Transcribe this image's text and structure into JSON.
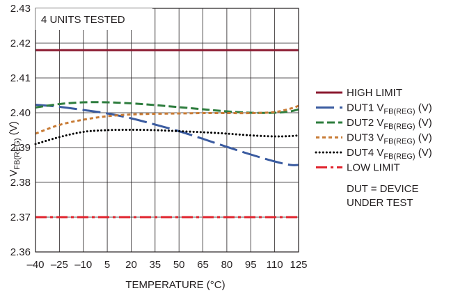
{
  "chart_data": {
    "type": "line",
    "annotation": "4 UNITS TESTED",
    "xlabel": "TEMPERATURE (°C)",
    "ylabel": {
      "main": "V",
      "sub": "FB(REG)",
      "unit": " (V)"
    },
    "xlim": [
      -40,
      125
    ],
    "ylim": [
      2.36,
      2.43
    ],
    "x_ticks": [
      -40,
      -25,
      -10,
      5,
      20,
      35,
      50,
      65,
      80,
      95,
      110,
      125
    ],
    "x_tick_labels": [
      "–40",
      "–25",
      "–10",
      "5",
      "20",
      "35",
      "50",
      "65",
      "80",
      "95",
      "110",
      "125"
    ],
    "y_ticks": [
      2.36,
      2.37,
      2.38,
      2.39,
      2.4,
      2.41,
      2.42,
      2.43
    ],
    "y_tick_labels": [
      "2.36",
      "2.37",
      "2.38",
      "2.39",
      "2.40",
      "2.41",
      "2.42",
      "2.43"
    ],
    "grid": true,
    "legend_position": "right",
    "legend_note": [
      "DUT = DEVICE",
      "UNDER TEST"
    ],
    "series": [
      {
        "name": "HIGH LIMIT",
        "label_main": "HIGH LIMIT",
        "label_sub": "",
        "label_unit": "",
        "color": "#8b1a30",
        "style": "solid",
        "x": [
          -40,
          125
        ],
        "y": [
          2.418,
          2.418
        ]
      },
      {
        "name": "DUT1 VFB(REG) (V)",
        "label_main": "DUT1 V",
        "label_sub": "FB(REG)",
        "label_unit": " (V)",
        "color": "#3a5ba0",
        "style": "longdash",
        "x": [
          -40,
          -25,
          -10,
          5,
          20,
          35,
          50,
          65,
          80,
          95,
          110,
          120,
          125
        ],
        "y": [
          2.4023,
          2.4017,
          2.4008,
          2.3998,
          2.3984,
          2.3966,
          2.3947,
          2.3925,
          2.3902,
          2.388,
          2.386,
          2.385,
          2.385
        ]
      },
      {
        "name": "DUT2 VFB(REG) (V)",
        "label_main": "DUT2 V",
        "label_sub": "FB(REG)",
        "label_unit": " (V)",
        "color": "#2e7d3e",
        "style": "dash",
        "x": [
          -40,
          -25,
          -10,
          5,
          20,
          35,
          50,
          65,
          80,
          95,
          110,
          120,
          125
        ],
        "y": [
          2.4015,
          2.4025,
          2.403,
          2.403,
          2.4027,
          2.4022,
          2.4016,
          2.401,
          2.4004,
          2.4,
          2.4,
          2.4004,
          2.401
        ]
      },
      {
        "name": "DUT3 VFB(REG) (V)",
        "label_main": "DUT3 V",
        "label_sub": "FB(REG)",
        "label_unit": " (V)",
        "color": "#c87b35",
        "style": "shortdash",
        "x": [
          -40,
          -25,
          -10,
          5,
          20,
          35,
          50,
          65,
          80,
          95,
          110,
          120,
          125
        ],
        "y": [
          2.394,
          2.3965,
          2.398,
          2.399,
          2.3995,
          2.3997,
          2.3998,
          2.3999,
          2.3999,
          2.3999,
          2.4002,
          2.4012,
          2.402
        ]
      },
      {
        "name": "DUT4 VFB(REG) (V)",
        "label_main": "DUT4 V",
        "label_sub": "FB(REG)",
        "label_unit": " (V)",
        "color": "#000000",
        "style": "dotted",
        "x": [
          -40,
          -25,
          -10,
          5,
          20,
          35,
          50,
          65,
          80,
          95,
          110,
          120,
          125
        ],
        "y": [
          2.391,
          2.393,
          2.3945,
          2.395,
          2.3951,
          2.395,
          2.3947,
          2.3944,
          2.394,
          2.3935,
          2.3932,
          2.3933,
          2.3935
        ]
      },
      {
        "name": "LOW LIMIT",
        "label_main": "LOW LIMIT",
        "label_sub": "",
        "label_unit": "",
        "color": "#e0242e",
        "style": "dashdot",
        "x": [
          -40,
          125
        ],
        "y": [
          2.37,
          2.37
        ]
      }
    ]
  }
}
